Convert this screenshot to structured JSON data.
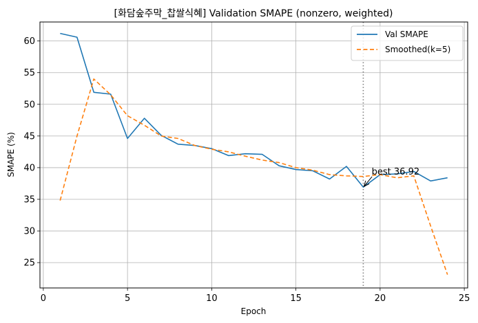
{
  "chart_data": {
    "type": "line",
    "title": "[화담숲주막_찹쌀식혜] Validation SMAPE (nonzero, weighted)",
    "xlabel": "Epoch",
    "ylabel": "SMAPE (%)",
    "xlim": [
      -0.2,
      25.2
    ],
    "ylim": [
      21,
      63
    ],
    "xticks": [
      0,
      5,
      10,
      15,
      20,
      25
    ],
    "yticks": [
      25,
      30,
      35,
      40,
      45,
      50,
      55,
      60
    ],
    "grid": true,
    "legend_position": "top-right",
    "series": [
      {
        "name": "Val SMAPE",
        "color": "#1f77b4",
        "style": "solid",
        "x": [
          1,
          2,
          3,
          4,
          5,
          6,
          7,
          8,
          9,
          10,
          11,
          12,
          13,
          14,
          15,
          16,
          17,
          18,
          19,
          20,
          21,
          22,
          23,
          24
        ],
        "y": [
          61.2,
          60.6,
          51.9,
          51.6,
          44.6,
          47.8,
          45.1,
          43.7,
          43.5,
          43.0,
          41.9,
          42.2,
          42.1,
          40.3,
          39.7,
          39.5,
          38.2,
          40.2,
          36.92,
          38.9,
          39.0,
          39.4,
          37.9,
          38.4
        ]
      },
      {
        "name": "Smoothed(k=5)",
        "color": "#ff7f0e",
        "style": "dashed",
        "x": [
          1,
          2,
          3,
          4,
          5,
          6,
          7,
          8,
          9,
          10,
          11,
          12,
          13,
          14,
          15,
          16,
          17,
          18,
          19,
          20,
          21,
          22,
          23,
          24
        ],
        "y": [
          34.8,
          45.0,
          54.0,
          51.5,
          48.2,
          46.7,
          45.0,
          44.6,
          43.5,
          42.9,
          42.5,
          41.8,
          41.2,
          40.8,
          40.0,
          39.6,
          38.9,
          38.7,
          38.6,
          38.9,
          38.4,
          38.7,
          30.8,
          23.1
        ]
      }
    ],
    "vline": {
      "x": 19,
      "color": "#808080",
      "style": "dotted"
    },
    "annotation": {
      "text": "best 36.92",
      "x": 19,
      "y": 36.92,
      "text_x": 19.5,
      "text_y": 38.9
    }
  }
}
